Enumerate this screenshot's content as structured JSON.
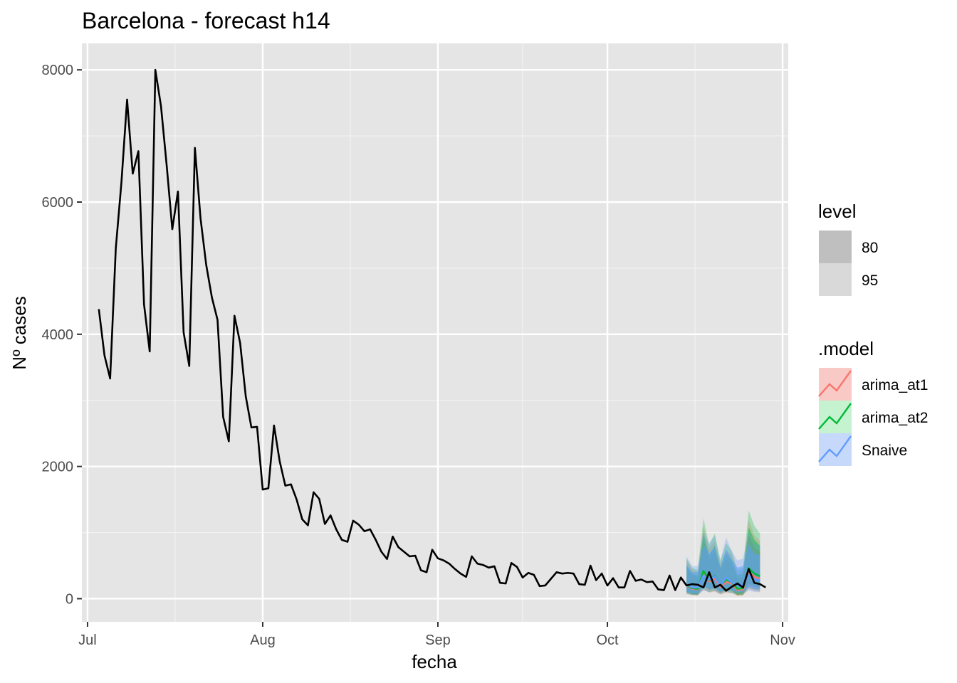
{
  "chart_data": {
    "type": "line",
    "title": "Barcelona - forecast h14",
    "xlabel": "fecha",
    "ylabel": "Nº cases",
    "x_ticks": [
      "Jul",
      "Aug",
      "Sep",
      "Oct",
      "Nov"
    ],
    "y_ticks": [
      "0",
      "2000",
      "4000",
      "6000",
      "8000"
    ],
    "ylim": [
      -350,
      8400
    ],
    "xlim": [
      "2020-06-30",
      "2020-11-02"
    ],
    "grid": true,
    "background": "#e5e5e5",
    "observed": {
      "color": "#000000",
      "start": "2020-07-03",
      "values": [
        4380,
        3680,
        3330,
        5300,
        6300,
        7550,
        6430,
        6770,
        4450,
        3740,
        8000,
        7450,
        6560,
        5590,
        6160,
        4030,
        3520,
        6820,
        5750,
        5050,
        4560,
        4220,
        2750,
        2380,
        4280,
        3870,
        3060,
        2590,
        2600,
        1650,
        1670,
        2620,
        2080,
        1710,
        1730,
        1500,
        1200,
        1110,
        1610,
        1510,
        1130,
        1260,
        1050,
        890,
        860,
        1180,
        1120,
        1020,
        1050,
        890,
        710,
        600,
        940,
        780,
        710,
        640,
        650,
        430,
        400,
        740,
        610,
        580,
        530,
        450,
        380,
        330,
        640,
        530,
        510,
        470,
        490,
        240,
        230,
        540,
        480,
        320,
        390,
        360,
        190,
        200,
        300,
        400,
        380,
        390,
        380,
        220,
        210,
        500,
        280,
        380,
        200,
        310,
        170,
        170,
        420,
        270,
        290,
        250,
        260,
        140,
        130,
        350,
        130,
        320,
        200,
        220,
        210,
        170,
        400,
        170,
        210,
        120,
        180,
        230,
        170,
        450,
        240,
        220,
        170
      ]
    },
    "forecast": {
      "start": "2020-10-15",
      "models": [
        {
          "name": "arima_at1",
          "color": "#f8766d",
          "values": [
            200,
            150,
            140,
            380,
            260,
            300,
            180,
            250,
            230,
            130,
            140,
            410,
            330,
            300
          ]
        },
        {
          "name": "arima_at2",
          "color": "#00ba38",
          "values": [
            210,
            160,
            150,
            420,
            280,
            340,
            200,
            290,
            250,
            150,
            160,
            460,
            380,
            340
          ]
        },
        {
          "name": "Snaive",
          "color": "#619cff",
          "values": [
            220,
            170,
            170,
            350,
            290,
            330,
            200,
            320,
            250,
            200,
            210,
            350,
            290,
            280
          ]
        }
      ]
    },
    "legend": {
      "position": "right",
      "level": {
        "title": "level",
        "items": [
          {
            "label": "80",
            "color": "#bfbfbf"
          },
          {
            "label": "95",
            "color": "#d9d9d9"
          }
        ]
      },
      "model": {
        "title": ".model",
        "items": [
          {
            "label": "arima_at1",
            "line": "#f8766d",
            "fill": "#f8c9c5"
          },
          {
            "label": "arima_at2",
            "line": "#00ba38",
            "fill": "#c5f3cf"
          },
          {
            "label": "Snaive",
            "line": "#619cff",
            "fill": "#c6d9fb"
          }
        ]
      }
    }
  }
}
